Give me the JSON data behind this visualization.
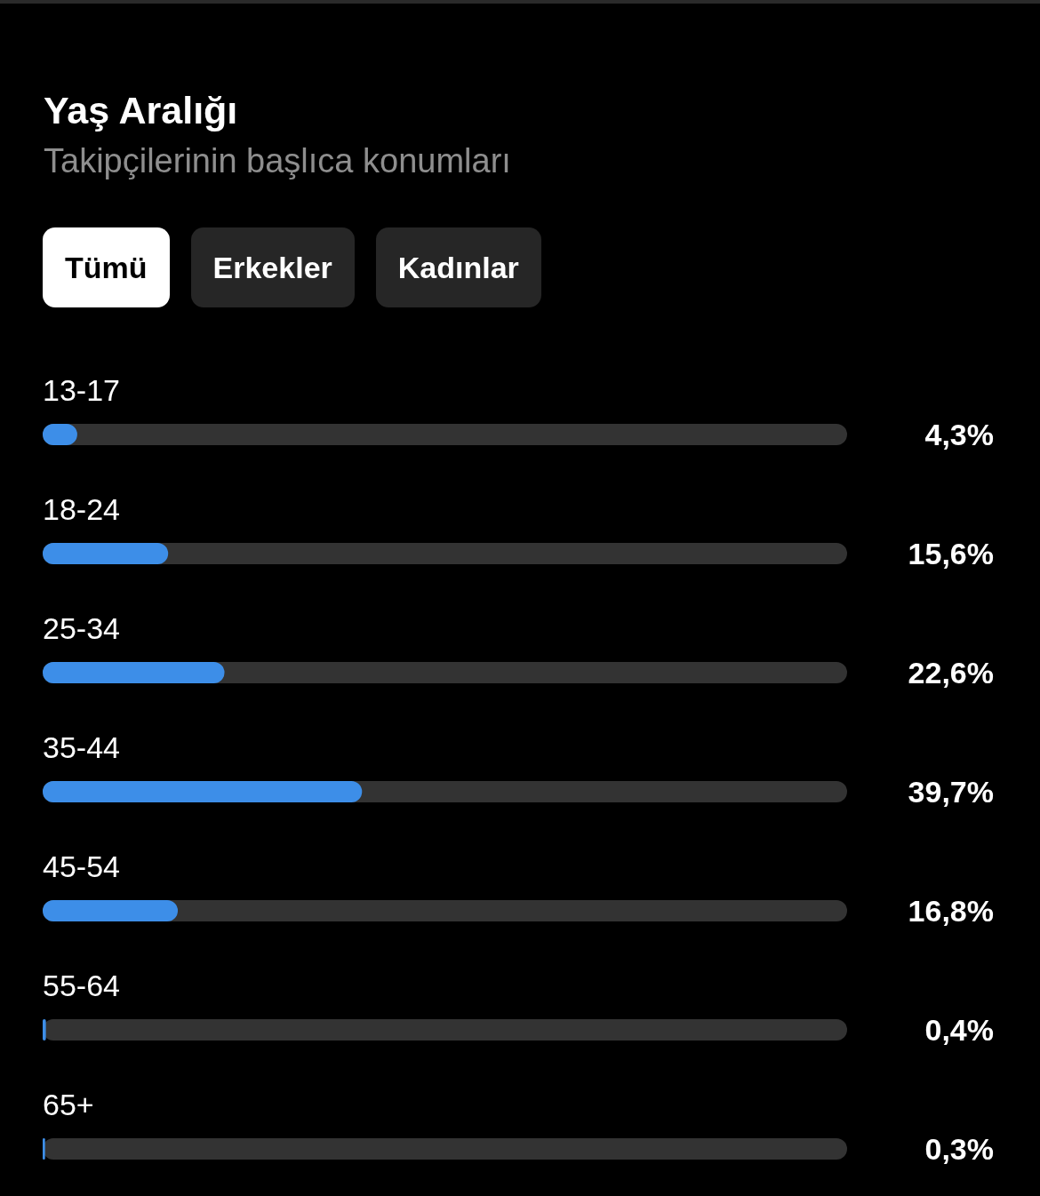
{
  "chart_data": {
    "type": "bar",
    "orientation": "horizontal",
    "title": "Yaş Aralığı",
    "subtitle": "Takipçilerinin başlıca konumları",
    "annotations": [
      "Tümü",
      "Erkekler",
      "Kadınlar"
    ],
    "categories": [
      "13-17",
      "18-24",
      "25-34",
      "35-44",
      "45-54",
      "55-64",
      "65+"
    ],
    "values": [
      4.3,
      15.6,
      22.6,
      39.7,
      16.8,
      0.4,
      0.3
    ],
    "value_labels": [
      "4,3%",
      "15,6%",
      "22,6%",
      "39,7%",
      "16,8%",
      "0,4%",
      "0,3%"
    ],
    "color": "#3d8ee8",
    "xlim": [
      0,
      100
    ]
  }
}
